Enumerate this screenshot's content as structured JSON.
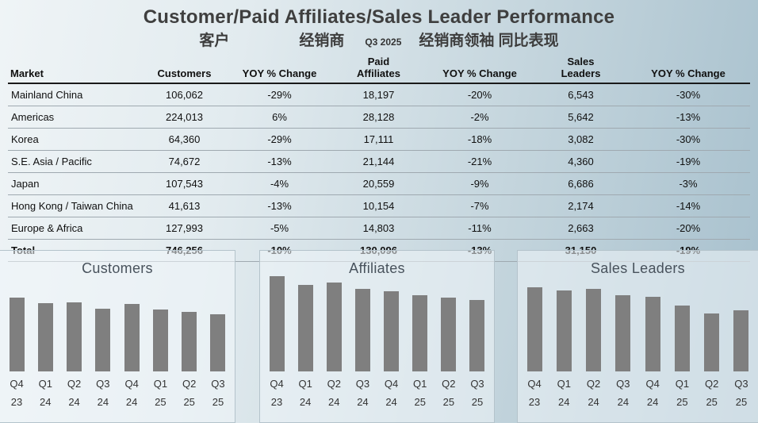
{
  "slide": {
    "title": "Customer/Paid Affiliates/Sales Leader Performance",
    "subtitle": {
      "customers_cn": "客户",
      "affiliates_cn": "经销商",
      "quarter": "Q3 2025",
      "leaders_yoy_cn": "经销商领袖 同比表现"
    }
  },
  "table": {
    "headers": [
      {
        "l1": "",
        "l2": "Market"
      },
      {
        "l1": "",
        "l2": "Customers"
      },
      {
        "l1": "",
        "l2": "YOY % Change"
      },
      {
        "l1": "Paid",
        "l2": "Affiliates"
      },
      {
        "l1": "",
        "l2": "YOY % Change"
      },
      {
        "l1": "Sales",
        "l2": "Leaders"
      },
      {
        "l1": "",
        "l2": "YOY % Change"
      }
    ],
    "rows": [
      {
        "market": "Mainland China",
        "customers": "106,062",
        "customers_yoy": "-29%",
        "affiliates": "18,197",
        "affiliates_yoy": "-20%",
        "leaders": "6,543",
        "leaders_yoy": "-30%"
      },
      {
        "market": "Americas",
        "customers": "224,013",
        "customers_yoy": "6%",
        "affiliates": "28,128",
        "affiliates_yoy": "-2%",
        "leaders": "5,642",
        "leaders_yoy": "-13%"
      },
      {
        "market": "Korea",
        "customers": "64,360",
        "customers_yoy": "-29%",
        "affiliates": "17,111",
        "affiliates_yoy": "-18%",
        "leaders": "3,082",
        "leaders_yoy": "-30%"
      },
      {
        "market": "S.E. Asia / Pacific",
        "customers": "74,672",
        "customers_yoy": "-13%",
        "affiliates": "21,144",
        "affiliates_yoy": "-21%",
        "leaders": "4,360",
        "leaders_yoy": "-19%"
      },
      {
        "market": "Japan",
        "customers": "107,543",
        "customers_yoy": "-4%",
        "affiliates": "20,559",
        "affiliates_yoy": "-9%",
        "leaders": "6,686",
        "leaders_yoy": "-3%"
      },
      {
        "market": "Hong Kong / Taiwan China",
        "customers": "41,613",
        "customers_yoy": "-13%",
        "affiliates": "10,154",
        "affiliates_yoy": "-7%",
        "leaders": "2,174",
        "leaders_yoy": "-14%"
      },
      {
        "market": "Europe & Africa",
        "customers": "127,993",
        "customers_yoy": "-5%",
        "affiliates": "14,803",
        "affiliates_yoy": "-11%",
        "leaders": "2,663",
        "leaders_yoy": "-20%"
      }
    ],
    "total": {
      "market": "Total",
      "customers": "746,256",
      "customers_yoy": "-10%",
      "affiliates": "130,096",
      "affiliates_yoy": "-13%",
      "leaders": "31,150",
      "leaders_yoy": "-19%"
    }
  },
  "chart_data": [
    {
      "type": "bar",
      "title": "Customers",
      "categories": [
        "Q4 23",
        "Q1 24",
        "Q2 24",
        "Q3 24",
        "Q4 24",
        "Q1 25",
        "Q2 25",
        "Q3 25"
      ],
      "values": [
        970,
        895,
        905,
        829,
        885,
        810,
        778,
        746
      ],
      "units": "thousands (estimated from bar heights; Q3 25 total = 746,256 per table)",
      "xlabel": "",
      "ylabel": "",
      "grid": false,
      "legend": false
    },
    {
      "type": "bar",
      "title": "Affiliates",
      "categories": [
        "Q4 23",
        "Q1 24",
        "Q2 24",
        "Q3 24",
        "Q4 24",
        "Q1 25",
        "Q2 25",
        "Q3 25"
      ],
      "values": [
        173,
        157,
        161,
        150,
        145,
        139,
        134,
        130
      ],
      "units": "thousands (estimated from bar heights; Q3 25 total = 130,096 per table)",
      "xlabel": "",
      "ylabel": "",
      "grid": false,
      "legend": false
    },
    {
      "type": "bar",
      "title": "Sales Leaders",
      "categories": [
        "Q4 23",
        "Q1 24",
        "Q2 24",
        "Q3 24",
        "Q4 24",
        "Q1 25",
        "Q2 25",
        "Q3 25"
      ],
      "values": [
        43,
        41.5,
        42,
        39,
        38,
        33.5,
        29.5,
        31.2
      ],
      "units": "thousands (estimated from bar heights; Q3 25 total = 31,150 per table)",
      "xlabel": "",
      "ylabel": "",
      "grid": false,
      "legend": false
    }
  ],
  "colors": {
    "bar": "#7f7f7f",
    "slide_bg_light": "#eff4f6",
    "slide_bg_dark": "#a7c0cd",
    "panel_bg": "#eef4f7",
    "text_dark": "#3f3f3f"
  }
}
